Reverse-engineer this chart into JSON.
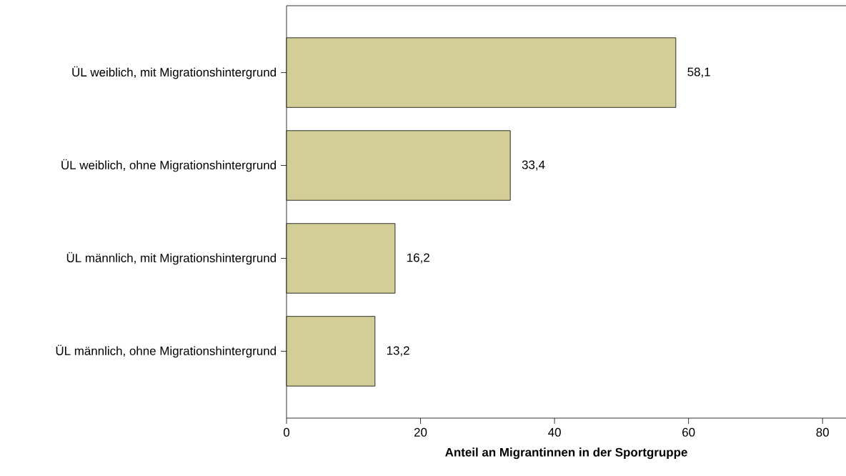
{
  "chart_data": {
    "type": "bar",
    "orientation": "horizontal",
    "categories": [
      "ÜL weiblich, mit Migrationshintergrund",
      "ÜL weiblich, ohne Migrationshintergrund",
      "ÜL männlich, mit Migrationshintergrund",
      "ÜL männlich, ohne Migrationshintergrund"
    ],
    "values": [
      58.1,
      33.4,
      16.2,
      13.2
    ],
    "value_labels": [
      "58,1",
      "33,4",
      "16,2",
      "13,2"
    ],
    "color": "#d3ce97",
    "xlabel": "Anteil an Migrantinnen in der Sportgruppe",
    "xlim": [
      0,
      83.5
    ],
    "xticks": [
      0,
      20,
      40,
      60,
      80
    ]
  }
}
